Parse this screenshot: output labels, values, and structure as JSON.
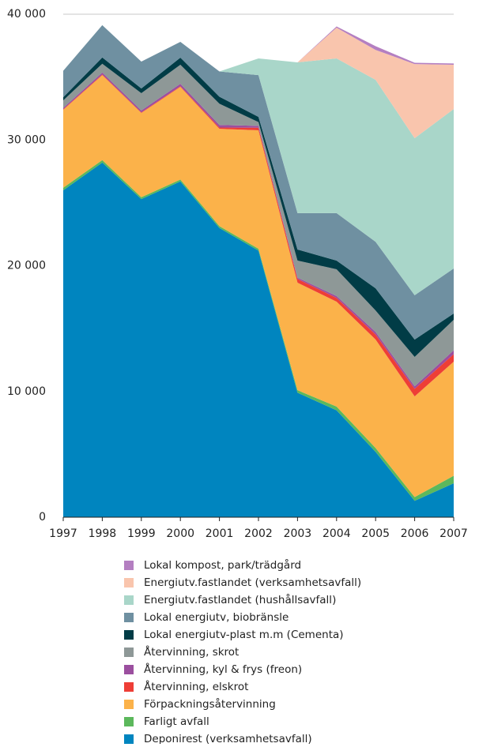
{
  "chart_data": {
    "type": "stacked_area",
    "x": [
      1997,
      1998,
      1999,
      2000,
      2001,
      2002,
      2003,
      2004,
      2005,
      2006,
      2007
    ],
    "xlim": [
      1997,
      2007
    ],
    "xticks": [
      1997,
      1998,
      1999,
      2000,
      2001,
      2002,
      2003,
      2004,
      2005,
      2006,
      2007
    ],
    "ylim": [
      0,
      40000
    ],
    "yticks": [
      0,
      {
        "value": 10000,
        "label": "10 000"
      },
      {
        "value": 20000,
        "label": "20 000"
      },
      {
        "value": 30000,
        "label": "30 000"
      },
      {
        "value": 40000,
        "label": "40 000"
      }
    ],
    "grid": true,
    "legend": "bottom",
    "series": [
      {
        "name": "Deponirest (verksamhetsavfall)",
        "color": "#0085bf",
        "values": [
          26000,
          28200,
          25300,
          26700,
          23000,
          21200,
          9900,
          8500,
          5200,
          1300,
          2700
        ]
      },
      {
        "name": "Farligt avfall",
        "color": "#5cb85c",
        "values": [
          200,
          200,
          150,
          150,
          150,
          150,
          200,
          300,
          300,
          300,
          600
        ]
      },
      {
        "name": "Förpackningsåtervinning",
        "color": "#fbb24a",
        "values": [
          6200,
          6760,
          6700,
          7370,
          7740,
          9420,
          8550,
          8340,
          8630,
          8010,
          9070
        ]
      },
      {
        "name": "Återvinning, elskrot",
        "color": "#ee3e36",
        "values": [
          50,
          50,
          50,
          50,
          100,
          200,
          300,
          300,
          400,
          600,
          600
        ]
      },
      {
        "name": "Återvinning, kyl & frys (freon)",
        "color": "#9b4f9f",
        "values": [
          100,
          150,
          150,
          200,
          200,
          150,
          100,
          150,
          200,
          200,
          300
        ]
      },
      {
        "name": "Återvinning, skrot",
        "color": "#8e9897",
        "values": [
          600,
          700,
          1370,
          1510,
          1690,
          300,
          1360,
          2130,
          1710,
          2340,
          2430
        ]
      },
      {
        "name": "Lokal energiutv-plast m.m (Cementa)",
        "color": "#013c46",
        "values": [
          250,
          500,
          380,
          570,
          560,
          420,
          880,
          690,
          1760,
          1380,
          500
        ]
      },
      {
        "name": "Lokal energiutv, biobränsle",
        "color": "#6f90a1",
        "values": [
          2100,
          2570,
          2130,
          1250,
          2010,
          3320,
          2890,
          3770,
          3700,
          3520,
          3580
        ]
      },
      {
        "name": "Energiutv.fastlandet (hushållsavfall)",
        "color": "#a9d6c9",
        "values": [
          0,
          0,
          0,
          0,
          0,
          1320,
          11990,
          12300,
          12880,
          12490,
          12680
        ]
      },
      {
        "name": "Energiutv.fastlandet (verksamhetsavfall)",
        "color": "#f9c5ad",
        "values": [
          0,
          0,
          0,
          0,
          0,
          0,
          0,
          2450,
          2380,
          5900,
          3520
        ]
      },
      {
        "name": "Lokal kompost, park/trädgård",
        "color": "#b47fc1",
        "values": [
          0,
          0,
          0,
          0,
          0,
          0,
          0,
          100,
          300,
          100,
          100
        ]
      }
    ]
  }
}
